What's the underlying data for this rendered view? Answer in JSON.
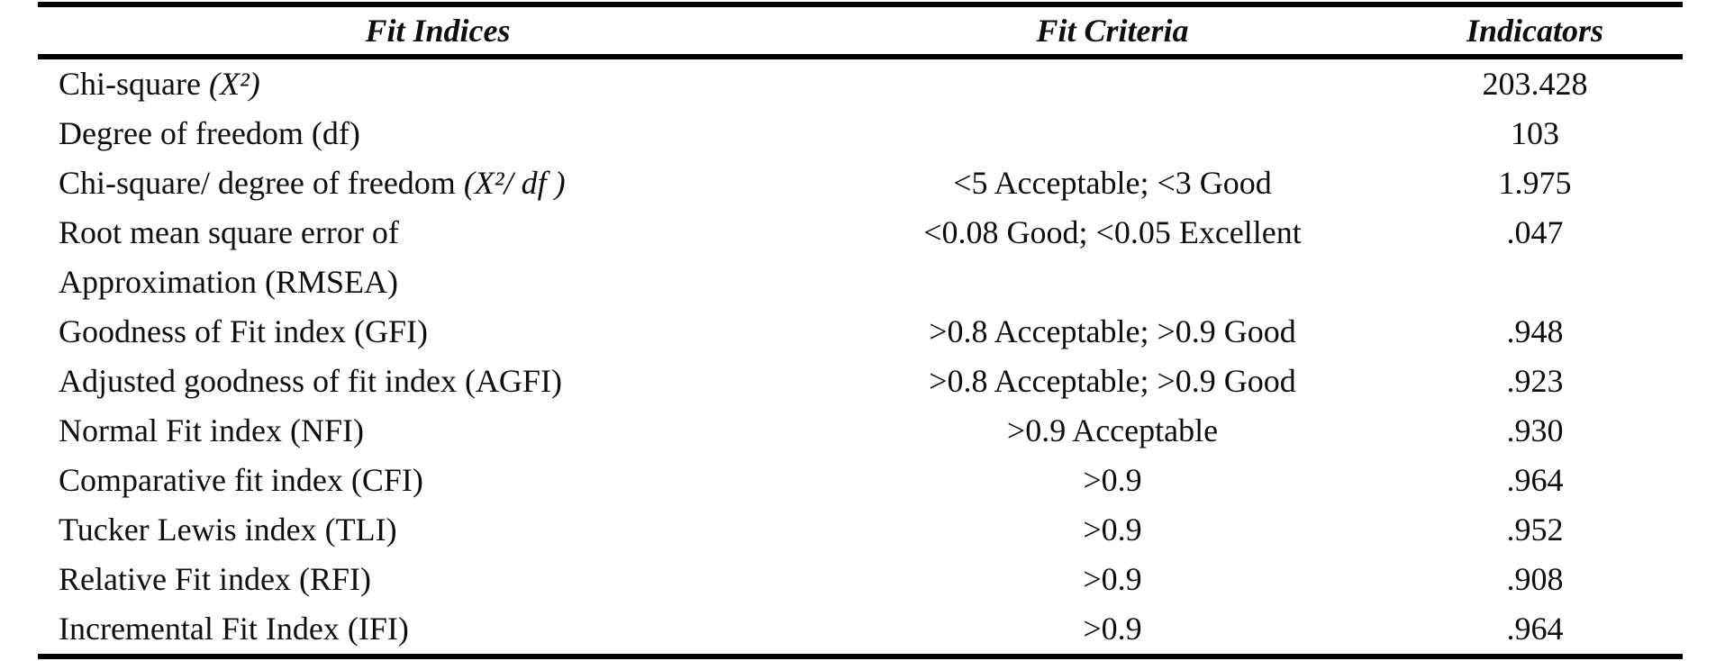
{
  "page": {
    "background": "#ffffff",
    "text_color": "#0e0e0e",
    "rule_color": "#000000"
  },
  "table": {
    "headers": {
      "fit_indices": "Fit Indices",
      "fit_criteria": "Fit Criteria",
      "indicators": "Indicators"
    },
    "rows": [
      {
        "label": "Chi-square ",
        "formula": "(X²)",
        "criteria": "",
        "indicator": "203.428"
      },
      {
        "label": "Degree of freedom (df)",
        "criteria": "",
        "indicator": "103"
      },
      {
        "label": "Chi-square/ degree of freedom ",
        "formula": "(X²/ df )",
        "criteria": "<5 Acceptable; <3 Good",
        "indicator": "1.975"
      },
      {
        "label": "Root mean square error of",
        "label_line2": "Approximation (RMSEA)",
        "criteria": "<0.08 Good; <0.05 Excellent",
        "indicator": ".047"
      },
      {
        "label": "Goodness of Fit index (GFI)",
        "criteria": ">0.8 Acceptable; >0.9 Good",
        "indicator": ".948"
      },
      {
        "label": "Adjusted goodness of fit index (AGFI)",
        "criteria": ">0.8 Acceptable; >0.9 Good",
        "indicator": ".923"
      },
      {
        "label": "Normal Fit index (NFI)",
        "criteria": ">0.9 Acceptable",
        "indicator": ".930"
      },
      {
        "label": "Comparative fit index  (CFI)",
        "criteria": ">0.9",
        "indicator": ".964"
      },
      {
        "label": "Tucker Lewis index (TLI)",
        "criteria": ">0.9",
        "indicator": ".952"
      },
      {
        "label": "Relative Fit index (RFI)",
        "criteria": ">0.9",
        "indicator": ".908"
      },
      {
        "label": "Incremental Fit Index (IFI)",
        "criteria": ">0.9",
        "indicator": ".964"
      }
    ]
  }
}
